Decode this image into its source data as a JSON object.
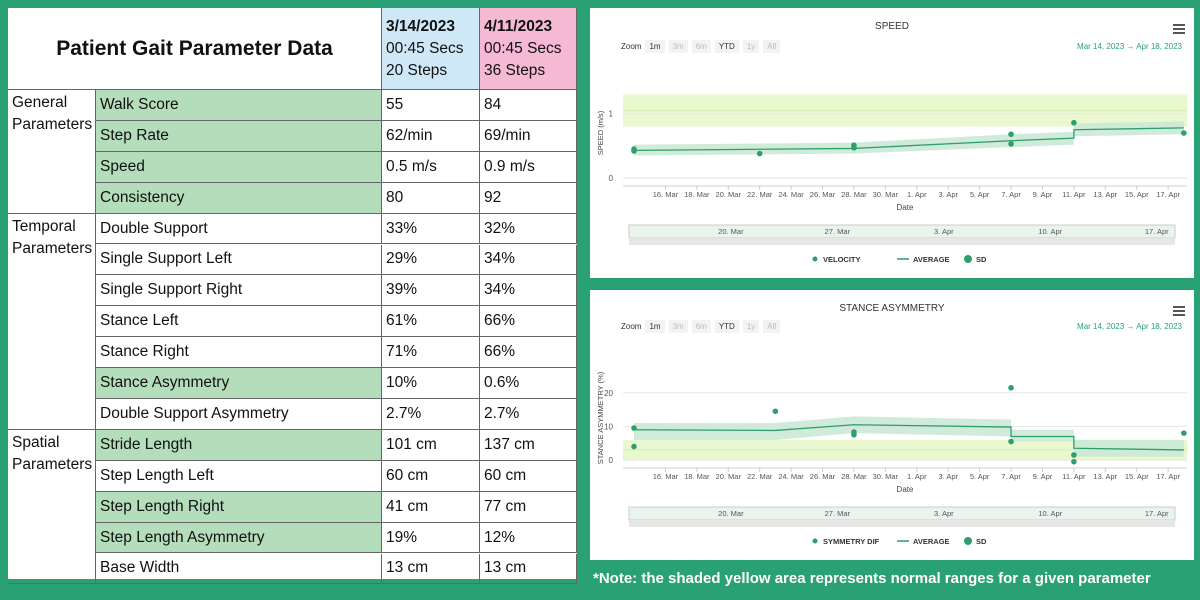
{
  "table": {
    "title": "Patient Gait Parameter Data",
    "sessions": [
      {
        "date": "3/14/2023",
        "duration": "00:45 Secs",
        "steps": "20 Steps"
      },
      {
        "date": "4/11/2023",
        "duration": "00:45 Secs",
        "steps": "36 Steps"
      }
    ],
    "groups": [
      {
        "label": "General Parameters",
        "rows": [
          {
            "param": "Walk Score",
            "v1": "55",
            "v2": "84",
            "shaded": true
          },
          {
            "param": "Step Rate",
            "v1": "62/min",
            "v2": "69/min",
            "shaded": true
          },
          {
            "param": "Speed",
            "v1": "0.5 m/s",
            "v2": "0.9 m/s",
            "shaded": true
          },
          {
            "param": "Consistency",
            "v1": "80",
            "v2": "92",
            "shaded": true
          }
        ]
      },
      {
        "label": "Temporal Parameters",
        "rows": [
          {
            "param": "Double Support",
            "v1": "33%",
            "v2": "32%",
            "shaded": false
          },
          {
            "param": "Single Support Left",
            "v1": "29%",
            "v2": "34%",
            "shaded": false
          },
          {
            "param": "Single Support Right",
            "v1": "39%",
            "v2": "34%",
            "shaded": false
          },
          {
            "param": "Stance Left",
            "v1": "61%",
            "v2": "66%",
            "shaded": false
          },
          {
            "param": "Stance Right",
            "v1": "71%",
            "v2": "66%",
            "shaded": false
          },
          {
            "param": "Stance Asymmetry",
            "v1": "10%",
            "v2": "0.6%",
            "shaded": true
          },
          {
            "param": "Double Support Asymmetry",
            "v1": "2.7%",
            "v2": "2.7%",
            "shaded": false
          }
        ]
      },
      {
        "label": "Spatial Parameters",
        "rows": [
          {
            "param": "Stride Length",
            "v1": "101 cm",
            "v2": "137 cm",
            "shaded": true
          },
          {
            "param": "Step Length Left",
            "v1": "60 cm",
            "v2": "60 cm",
            "shaded": false
          },
          {
            "param": "Step Length Right",
            "v1": "41 cm",
            "v2": "77 cm",
            "shaded": true
          },
          {
            "param": "Step Length Asymmetry",
            "v1": "19%",
            "v2": "12%",
            "shaded": true
          },
          {
            "param": "Base Width",
            "v1": "13 cm",
            "v2": "13 cm",
            "shaded": false
          }
        ]
      }
    ]
  },
  "zoom": {
    "label": "Zoom",
    "buttons": [
      "1m",
      "3m",
      "6m",
      "YTD",
      "1y",
      "All"
    ],
    "range_from": "Mar 14, 2023",
    "arrow": "→",
    "range_to": "Apr 18, 2023"
  },
  "x_ticks": [
    "16. Mar",
    "18. Mar",
    "20. Mar",
    "22. Mar",
    "24. Mar",
    "26. Mar",
    "28. Mar",
    "30. Mar",
    "1. Apr",
    "3. Apr",
    "5. Apr",
    "7. Apr",
    "9. Apr",
    "11. Apr",
    "13. Apr",
    "15. Apr",
    "17. Apr"
  ],
  "colors": {
    "background": "#2aa174",
    "shaded": "#b4ddbb",
    "session1": "#cfe8f8",
    "session2": "#f6b9d3",
    "series": "#2e9e6e",
    "normal_range": "#eaf8cf",
    "sd_band": "#cbe9d6"
  },
  "chart_data": [
    {
      "type": "line",
      "title": "SPEED",
      "ylabel": "SPEED (m/s)",
      "xlabel": "Date",
      "ylim": [
        0,
        1.4
      ],
      "yticks": [
        0,
        1
      ],
      "normal_range": [
        0.8,
        1.3
      ],
      "x_range": [
        "2023-03-14",
        "2023-04-18"
      ],
      "navigator_labels": [
        "20. Mar",
        "27. Mar",
        "3. Apr",
        "10. Apr",
        "17. Apr"
      ],
      "legend": [
        "VELOCITY",
        "AVERAGE",
        "SD"
      ],
      "series": [
        {
          "name": "VELOCITY",
          "points": [
            [
              "2023-03-14",
              0.45
            ],
            [
              "2023-03-14",
              0.42
            ],
            [
              "2023-03-22",
              0.38
            ],
            [
              "2023-03-28",
              0.47
            ],
            [
              "2023-03-28",
              0.51
            ],
            [
              "2023-04-07",
              0.53
            ],
            [
              "2023-04-07",
              0.68
            ],
            [
              "2023-04-11",
              0.86
            ],
            [
              "2023-04-18",
              0.7
            ]
          ]
        },
        {
          "name": "AVERAGE",
          "points": [
            [
              "2023-03-14",
              0.43
            ],
            [
              "2023-03-28",
              0.46
            ],
            [
              "2023-04-07",
              0.58
            ],
            [
              "2023-04-11",
              0.62
            ],
            [
              "2023-04-11",
              0.75
            ],
            [
              "2023-04-18",
              0.78
            ]
          ]
        }
      ],
      "sd_band": [
        [
          "2023-03-14",
          0.35,
          0.52
        ],
        [
          "2023-03-28",
          0.38,
          0.55
        ],
        [
          "2023-04-07",
          0.48,
          0.68
        ],
        [
          "2023-04-11",
          0.52,
          0.72
        ],
        [
          "2023-04-11",
          0.65,
          0.85
        ],
        [
          "2023-04-18",
          0.68,
          0.88
        ]
      ]
    },
    {
      "type": "line",
      "title": "STANCE ASYMMETRY",
      "ylabel": "STANCE ASYMMETRY (%)",
      "xlabel": "Date",
      "ylim": [
        0,
        25
      ],
      "yticks": [
        0,
        10,
        20
      ],
      "normal_range": [
        0,
        6
      ],
      "x_range": [
        "2023-03-14",
        "2023-04-18"
      ],
      "navigator_labels": [
        "20. Mar",
        "27. Mar",
        "3. Apr",
        "10. Apr",
        "17. Apr"
      ],
      "legend": [
        "SYMMETRY DIF",
        "AVERAGE",
        "SD"
      ],
      "series": [
        {
          "name": "SYMMETRY DIF",
          "points": [
            [
              "2023-03-14",
              9.5
            ],
            [
              "2023-03-14",
              4
            ],
            [
              "2023-03-23",
              14.5
            ],
            [
              "2023-03-28",
              7.5
            ],
            [
              "2023-03-28",
              8.3
            ],
            [
              "2023-04-07",
              21.5
            ],
            [
              "2023-04-07",
              5.5
            ],
            [
              "2023-04-11",
              1.5
            ],
            [
              "2023-04-11",
              -0.5
            ],
            [
              "2023-04-18",
              8
            ]
          ]
        },
        {
          "name": "AVERAGE",
          "points": [
            [
              "2023-03-14",
              9
            ],
            [
              "2023-03-23",
              8.8
            ],
            [
              "2023-03-28",
              10.5
            ],
            [
              "2023-04-07",
              9.8
            ],
            [
              "2023-04-07",
              7
            ],
            [
              "2023-04-11",
              7
            ],
            [
              "2023-04-11",
              3.5
            ],
            [
              "2023-04-18",
              3
            ]
          ]
        }
      ],
      "sd_band": [
        [
          "2023-03-14",
          6,
          11
        ],
        [
          "2023-03-23",
          6,
          11
        ],
        [
          "2023-03-28",
          8,
          13
        ],
        [
          "2023-04-07",
          7,
          12
        ],
        [
          "2023-04-07",
          5.5,
          9
        ],
        [
          "2023-04-11",
          5.5,
          9
        ],
        [
          "2023-04-11",
          1,
          6
        ],
        [
          "2023-04-18",
          1,
          6
        ]
      ]
    }
  ],
  "note": "*Note: the shaded yellow area represents normal ranges for a given parameter"
}
